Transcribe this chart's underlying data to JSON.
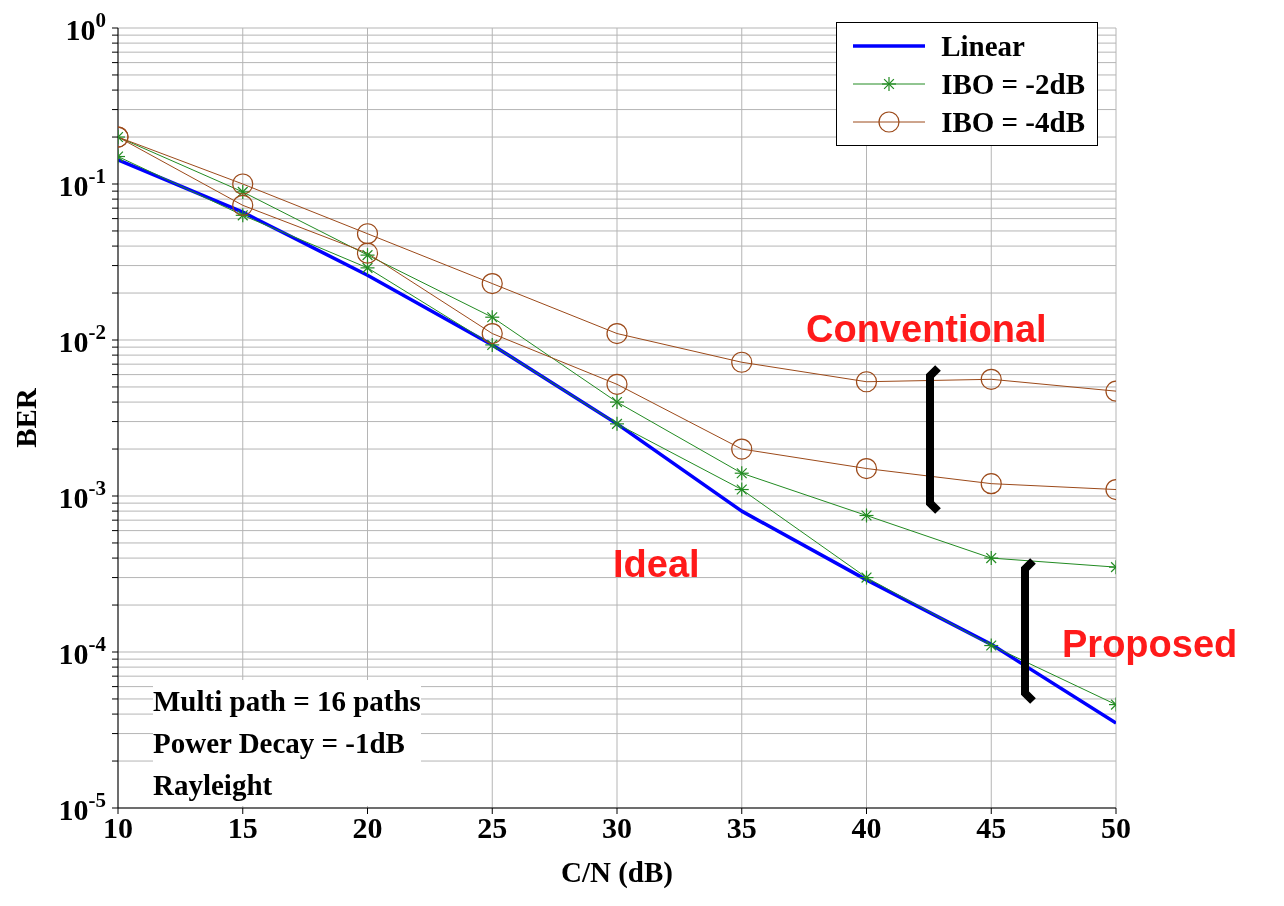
{
  "chart_data": {
    "type": "line",
    "xlabel": "C/N (dB)",
    "ylabel": "BER",
    "x": [
      10,
      15,
      20,
      25,
      30,
      35,
      40,
      45,
      50
    ],
    "xlim": [
      10,
      50
    ],
    "xticks": [
      10,
      15,
      20,
      25,
      30,
      35,
      40,
      45,
      50
    ],
    "ylim": [
      1e-05,
      1
    ],
    "log": "y",
    "grid": true,
    "legend": "top right",
    "line_style": "solid",
    "yticks": [
      {
        "value": 1e-05,
        "label": "10$^{-5}$"
      },
      {
        "value": 2e-05,
        "label": null
      },
      {
        "value": 3e-05,
        "label": null
      },
      {
        "value": 4e-05,
        "label": null
      },
      {
        "value": 5e-05,
        "label": null
      },
      {
        "value": 6e-05,
        "label": null
      },
      {
        "value": 7e-05,
        "label": null
      },
      {
        "value": 8e-05,
        "label": null
      },
      {
        "value": 9e-05,
        "label": null
      },
      {
        "value": 0.0001,
        "label": "10$^{-4}$"
      },
      {
        "value": 0.0002,
        "label": null
      },
      {
        "value": 0.0003,
        "label": null
      },
      {
        "value": 0.0004,
        "label": null
      },
      {
        "value": 0.0005,
        "label": null
      },
      {
        "value": 0.0006,
        "label": null
      },
      {
        "value": 0.0007,
        "label": null
      },
      {
        "value": 0.0008,
        "label": null
      },
      {
        "value": 0.0009,
        "label": null
      },
      {
        "value": 0.001,
        "label": "10$^{-3}$"
      },
      {
        "value": 0.002,
        "label": null
      },
      {
        "value": 0.003,
        "label": null
      },
      {
        "value": 0.004,
        "label": null
      },
      {
        "value": 0.005,
        "label": null
      },
      {
        "value": 0.006,
        "label": null
      },
      {
        "value": 0.007,
        "label": null
      },
      {
        "value": 0.008,
        "label": null
      },
      {
        "value": 0.009,
        "label": null
      },
      {
        "value": 0.01,
        "label": "10$^{-2}$"
      },
      {
        "value": 0.02,
        "label": null
      },
      {
        "value": 0.03,
        "label": null
      },
      {
        "value": 0.04,
        "label": null
      },
      {
        "value": 0.05,
        "label": null
      },
      {
        "value": 0.06,
        "label": null
      },
      {
        "value": 0.07,
        "label": null
      },
      {
        "value": 0.08,
        "label": null
      },
      {
        "value": 0.09,
        "label": null
      },
      {
        "value": 0.1,
        "label": "10$^{-1}$"
      },
      {
        "value": 0.2,
        "label": null
      },
      {
        "value": 0.3,
        "label": null
      },
      {
        "value": 0.4,
        "label": null
      },
      {
        "value": 0.5,
        "label": null
      },
      {
        "value": 0.6,
        "label": null
      },
      {
        "value": 0.7,
        "label": null
      },
      {
        "value": 0.8,
        "label": null
      },
      {
        "value": 0.9,
        "label": null
      },
      {
        "value": 1,
        "label": "10$^{0}$"
      }
    ],
    "series": [
      {
        "name": "Linear",
        "color": "#0000ff",
        "marker": "none",
        "values": [
          0.143,
          0.066,
          0.026,
          0.0093,
          0.0029,
          0.0008,
          0.00029,
          0.000112,
          3.5e-05
        ]
      },
      {
        "name": "IBO = -2dB",
        "color": "#228b22",
        "marker": "cross",
        "values": [
          0.2,
          0.089,
          0.035,
          0.014,
          0.004,
          0.0014,
          0.00075,
          0.0004,
          0.00035
        ]
      },
      {
        "color": "#228b22",
        "marker": "cross",
        "values": [
          0.15,
          0.063,
          0.029,
          0.0093,
          0.0029,
          0.0011,
          0.0003,
          0.00011,
          4.6e-05
        ]
      },
      {
        "name": "IBO = -4dB",
        "color": "#9c4a1a",
        "marker": "circle",
        "values": [
          0.2,
          0.1,
          0.048,
          0.023,
          0.011,
          0.0072,
          0.0054,
          0.0056,
          0.0047
        ]
      },
      {
        "color": "#9c4a1a",
        "marker": "circle",
        "values": [
          0.2,
          0.073,
          0.036,
          0.011,
          0.0052,
          0.002,
          0.0015,
          0.0012,
          0.0011
        ]
      }
    ],
    "annotations": [
      "Conventional",
      "Ideal",
      "Proposed",
      "Multi path = 16 paths",
      "Power Decay = -1dB",
      "Rayleight"
    ]
  }
}
